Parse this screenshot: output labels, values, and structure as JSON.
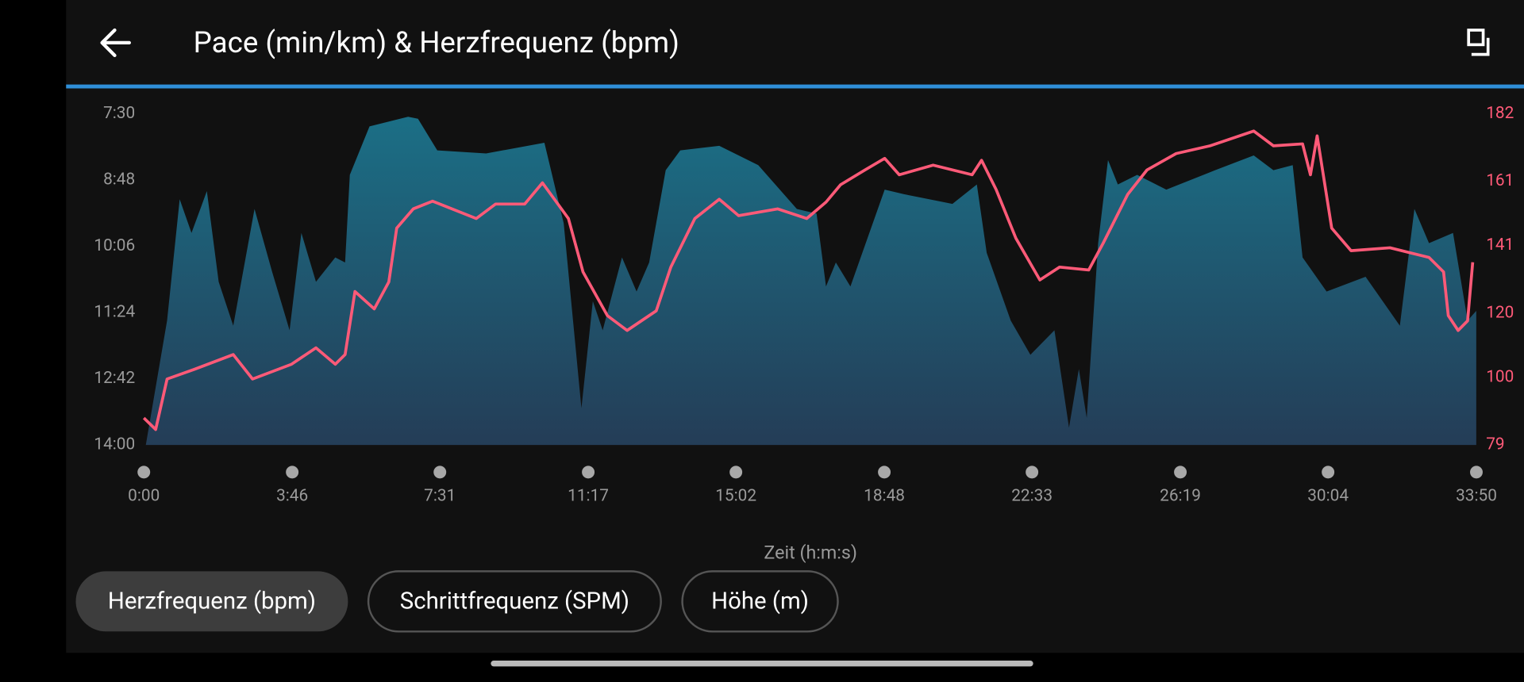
{
  "header": {
    "title": "Pace (min/km) & Herzfrequenz (bpm)"
  },
  "chart_data": {
    "type": "combo",
    "xlabel": "Zeit (h:m:s)",
    "xlim": [
      0,
      33.833
    ],
    "xticks": [
      {
        "value": 0,
        "label": "0:00"
      },
      {
        "value": 3.767,
        "label": "3:46"
      },
      {
        "value": 7.517,
        "label": "7:31"
      },
      {
        "value": 11.283,
        "label": "11:17"
      },
      {
        "value": 15.033,
        "label": "15:02"
      },
      {
        "value": 18.8,
        "label": "18:48"
      },
      {
        "value": 22.55,
        "label": "22:33"
      },
      {
        "value": 26.317,
        "label": "26:19"
      },
      {
        "value": 30.067,
        "label": "30:04"
      },
      {
        "value": 33.833,
        "label": "33:50"
      }
    ],
    "ylim": [
      14,
      7.5
    ],
    "yticks": [
      {
        "value": 7.5,
        "label": "7:30"
      },
      {
        "value": 8.8,
        "label": "8:48"
      },
      {
        "value": 10.1,
        "label": "10:06"
      },
      {
        "value": 11.4,
        "label": "11:24"
      },
      {
        "value": 12.7,
        "label": "12:42"
      },
      {
        "value": 14,
        "label": "14:00"
      }
    ],
    "y2lim": [
      79,
      182
    ],
    "y2ticks": [
      79,
      100,
      120,
      141,
      161,
      182
    ],
    "series": [
      {
        "type": "area",
        "color": "#1b6f86",
        "x": [
          0.05,
          0.59,
          0.91,
          1.21,
          1.6,
          1.9,
          2.27,
          2.81,
          3.26,
          3.7,
          4.0,
          4.37,
          4.86,
          5.11,
          5.23,
          5.73,
          6.71,
          6.96,
          7.45,
          8.69,
          10.17,
          10.66,
          11.11,
          11.4,
          11.65,
          12.14,
          12.51,
          12.83,
          13.25,
          13.62,
          14.61,
          15.6,
          16.58,
          17.08,
          17.32,
          17.57,
          17.94,
          18.81,
          19.3,
          20.53,
          21.15,
          21.4,
          22.01,
          22.51,
          23.12,
          23.49,
          23.74,
          23.94,
          24.23,
          24.48,
          24.73,
          25.22,
          25.96,
          27.2,
          28.18,
          28.68,
          29.17,
          29.42,
          30.03,
          31.02,
          31.89,
          32.26,
          32.63,
          33.24,
          33.61,
          33.83
        ],
        "values": [
          14.0,
          11.56,
          9.18,
          9.84,
          9.02,
          10.8,
          11.66,
          9.37,
          10.61,
          11.75,
          9.84,
          10.8,
          10.32,
          10.42,
          8.7,
          7.75,
          7.56,
          7.6,
          8.22,
          8.28,
          8.07,
          9.65,
          13.28,
          11.18,
          11.75,
          10.32,
          10.99,
          10.42,
          8.61,
          8.22,
          8.13,
          8.51,
          9.37,
          9.46,
          10.89,
          10.42,
          10.89,
          8.99,
          9.08,
          9.27,
          8.89,
          10.23,
          11.56,
          12.23,
          11.75,
          13.66,
          12.51,
          13.47,
          10.04,
          8.41,
          8.89,
          8.7,
          8.99,
          8.61,
          8.32,
          8.61,
          8.51,
          10.32,
          10.99,
          10.7,
          11.66,
          9.37,
          10.04,
          9.84,
          11.56,
          11.37
        ]
      },
      {
        "type": "line",
        "axis": "y2",
        "color": "#ff5a78",
        "x": [
          0,
          0.3,
          0.59,
          1.28,
          2.27,
          2.76,
          3.75,
          4.37,
          4.86,
          5.11,
          5.36,
          5.85,
          6.22,
          6.42,
          6.84,
          7.33,
          8.44,
          8.93,
          9.67,
          10.12,
          10.78,
          11.15,
          11.77,
          12.27,
          13.01,
          13.38,
          13.99,
          14.61,
          15.1,
          16.09,
          16.83,
          17.32,
          17.69,
          18.31,
          18.81,
          19.18,
          20.04,
          21.03,
          21.27,
          21.64,
          22.14,
          22.75,
          23.25,
          23.99,
          24.36,
          24.98,
          25.47,
          26.21,
          27.07,
          28.18,
          28.68,
          29.42,
          29.62,
          29.79,
          30.16,
          30.65,
          31.64,
          32.63,
          33.0,
          33.12,
          33.37,
          33.61,
          33.74
        ],
        "values": [
          87.4,
          83.8,
          99.5,
          102.5,
          107.1,
          99.5,
          104.1,
          109.2,
          104.1,
          107.1,
          126.7,
          121.3,
          129.7,
          146.4,
          152.4,
          154.8,
          149.4,
          153.9,
          153.9,
          160.5,
          149.4,
          132.8,
          119.2,
          114.6,
          120.7,
          134.3,
          149.4,
          155.4,
          150.3,
          152.4,
          149.4,
          154.5,
          159.9,
          164.5,
          168.1,
          163.0,
          166.0,
          163.0,
          167.5,
          158.4,
          143.3,
          130.3,
          134.3,
          133.4,
          141.8,
          156.9,
          164.5,
          169.6,
          172.0,
          176.6,
          172.0,
          172.6,
          163.0,
          175.1,
          146.4,
          139.4,
          140.3,
          137.3,
          132.8,
          119.2,
          114.6,
          117.6,
          135.8
        ]
      }
    ]
  },
  "buttons": [
    "Herzfrequenz (bpm)",
    "Schrittfrequenz (SPM)",
    "Höhe (m)"
  ],
  "selected_button": 0
}
